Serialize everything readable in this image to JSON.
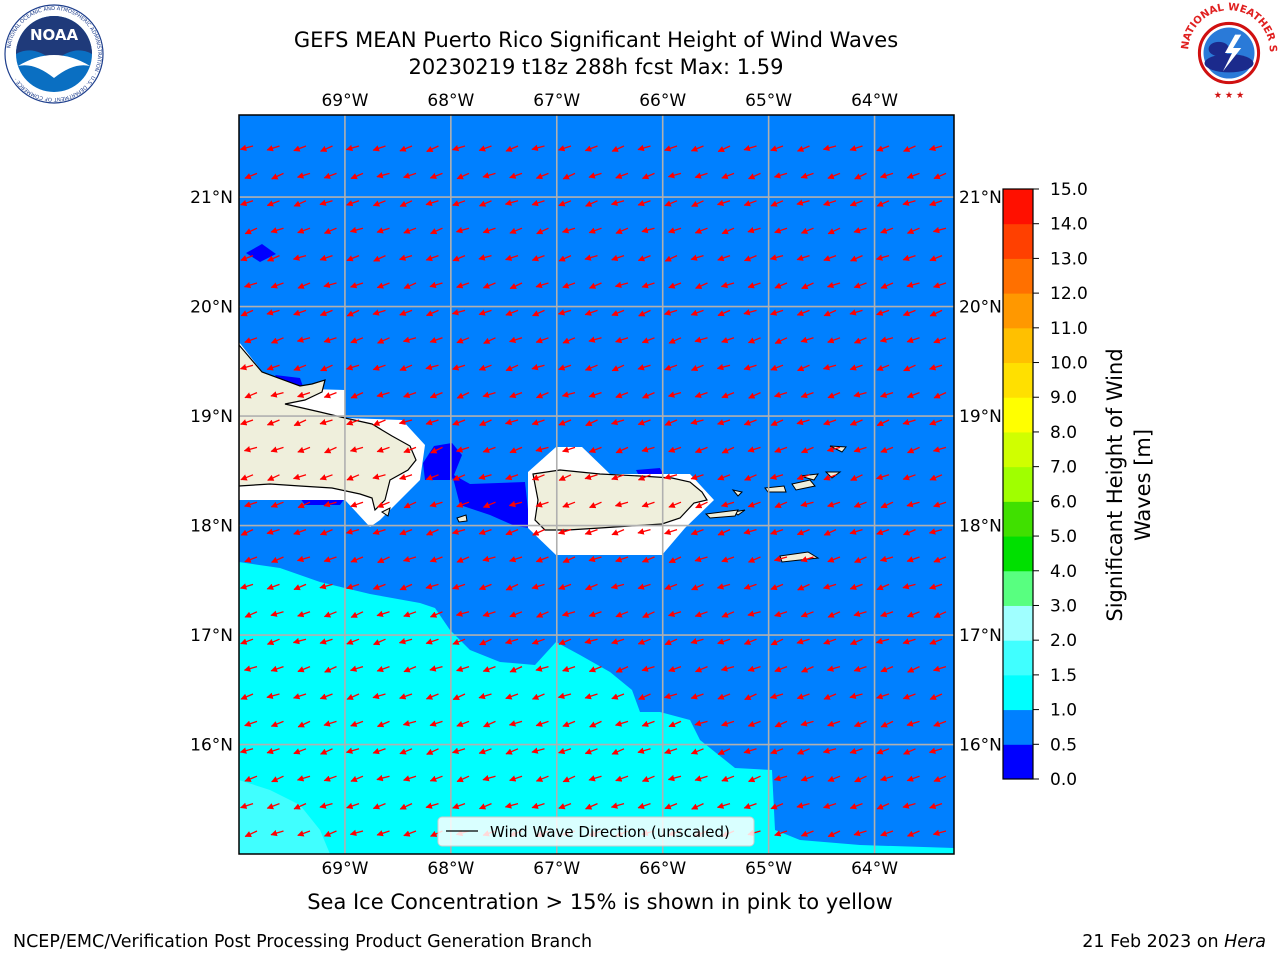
{
  "header": {
    "title_line1": "GEFS MEAN Puerto Rico Significant Height of Wind Waves",
    "title_line2": "20230219 t18z 288h fcst   Max: 1.59"
  },
  "logos": {
    "noaa_text": "NOAA",
    "noaa_ring": "NATIONAL OCEANIC AND ATMOSPHERIC ADMINISTRATION · U.S. DEPARTMENT OF COMMERCE ·",
    "nws_ring": "NATIONAL WEATHER SERVICE"
  },
  "map": {
    "lon_labels": [
      "69°W",
      "68°W",
      "67°W",
      "66°W",
      "65°W",
      "64°W"
    ],
    "lat_labels": [
      "21°N",
      "20°N",
      "19°N",
      "18°N",
      "17°N",
      "16°N"
    ],
    "lon_values": [
      -69,
      -68,
      -67,
      -66,
      -65,
      -64
    ],
    "lat_values": [
      21,
      20,
      19,
      18,
      17,
      16
    ],
    "extent": {
      "lon": [
        -70,
        -63.25
      ],
      "lat": [
        15,
        21.75
      ]
    },
    "legend_label": "Wind Wave Direction (unscaled)",
    "arrow_color": "#ff0000"
  },
  "colorbar": {
    "label": "Significant Height of Wind Waves [m]",
    "label_line1": "Significant Height of Wind",
    "label_line2": "Waves [m]",
    "tick_labels": [
      "0.0",
      "0.5",
      "1.0",
      "1.5",
      "2.0",
      "3.0",
      "4.0",
      "5.0",
      "6.0",
      "7.0",
      "8.0",
      "9.0",
      "10.0",
      "11.0",
      "12.0",
      "13.0",
      "14.0",
      "15.0"
    ],
    "colors": [
      "#0000ff",
      "#0080ff",
      "#00ffff",
      "#40ffff",
      "#a0ffff",
      "#58ff80",
      "#00e000",
      "#40e000",
      "#a0ff00",
      "#d0ff00",
      "#ffff00",
      "#ffe000",
      "#ffc000",
      "#ff9800",
      "#ff7000",
      "#ff4000",
      "#ff1000"
    ]
  },
  "caption": "Sea Ice Concentration > 15% is shown in pink to yellow",
  "footer": {
    "left": "NCEP/EMC/Verification Post Processing Product Generation Branch",
    "date": "21 Feb 2023 on ",
    "machine": "Hera"
  }
}
